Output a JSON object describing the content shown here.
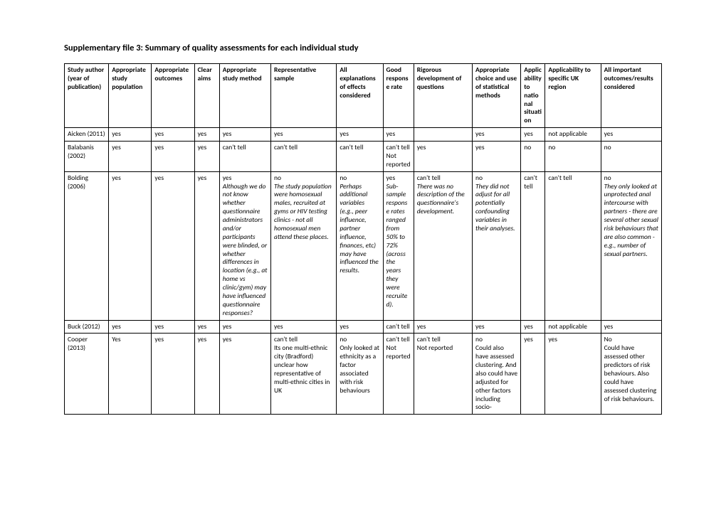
{
  "title": "Supplementary file 3: Summary of quality assessments for each individual study",
  "headers": [
    "Study author (year of publication)",
    "Appropriate study population",
    "Appropriate outcomes",
    "Clear aims",
    "Appropriate study method",
    "Representative sample",
    "All explanations of effects considered",
    "Good response rate",
    "Rigorous development of questions",
    "Appropriate choice and use of statistical methods",
    "Applicability to national situation",
    "Applicability to specific UK region",
    "All important outcomes/results considered"
  ],
  "rows": [
    {
      "study": "Aicken (2011)",
      "c2": "yes",
      "c3": "yes",
      "c4": "yes",
      "c5": "yes",
      "c6": "yes",
      "c7": "yes",
      "c8": "yes",
      "c9": "",
      "c10": "yes",
      "c11": "yes",
      "c12": "not applicable",
      "c13": "yes"
    },
    {
      "study": "Balabanis (2002)",
      "c2": "yes",
      "c3": "yes",
      "c4": "yes",
      "c5": "can't tell",
      "c6": "can't tell",
      "c7": "can't tell",
      "c8": "can't tell\nNot reported",
      "c9": "yes",
      "c10": "yes",
      "c11": "no",
      "c12": "no",
      "c13": "no"
    },
    {
      "study": "Bolding (2006)",
      "c2": "yes",
      "c3": "yes",
      "c4": "yes",
      "c5": "yes",
      "c5_note": "Although we do not know whether questionnaire administrators and/or participants were blinded, or whether differences in location (e.g., at home vs clinic/gym) may have influenced questionnaire responses?",
      "c6": "no",
      "c6_note": "The study population were homosexual males, recruited at gyms or HIV testing clinics - not all homosexual men attend these places.",
      "c7": "no",
      "c7_note": "Perhaps additional variables (e.g., peer influence, partner influence, finances, etc) may have influenced the results.",
      "c8": "yes",
      "c8_note": "Sub-sample response rates ranged from 50% to 72% (across the years they were recruited).",
      "c9": "can't tell",
      "c9_note": "There was no description of the questionnaire's development.",
      "c10": "no",
      "c10_note": "They did not adjust for all potentially confounding variables in their analyses.",
      "c11": "can't tell",
      "c12": "can't tell",
      "c13": "no",
      "c13_note": "They only looked at unprotected anal intercourse with partners - there are several other sexual risk behaviours that are also  common - e.g., number of sexual partners."
    },
    {
      "study": "Buck (2012)",
      "c2": "yes",
      "c3": "yes",
      "c4": "yes",
      "c5": "yes",
      "c6": "yes",
      "c7": "yes",
      "c8": "can't tell",
      "c9": "yes",
      "c10": "yes",
      "c11": "yes",
      "c12": "not applicable",
      "c13": "yes"
    },
    {
      "study": "Cooper (2013)",
      "c2": "Yes",
      "c3": "yes",
      "c4": "yes",
      "c5": "yes",
      "c6": "can't tell\nIts one multi-ethnic city (Bradford) unclear how representative of multi-ethnic cities in UK",
      "c7": "no\nOnly looked at ethnicity as a factor associated with risk behaviours",
      "c8": "can't tell\nNot reported",
      "c9": "can't tell\nNot reported",
      "c10": "no\nCould also have assessed clustering. And also could have adjusted for other factors including socio-",
      "c11": "yes",
      "c12": "yes",
      "c13": "No\nCould have assessed other predictors of risk behaviours. Also could have assessed clustering of risk behaviours."
    }
  ]
}
